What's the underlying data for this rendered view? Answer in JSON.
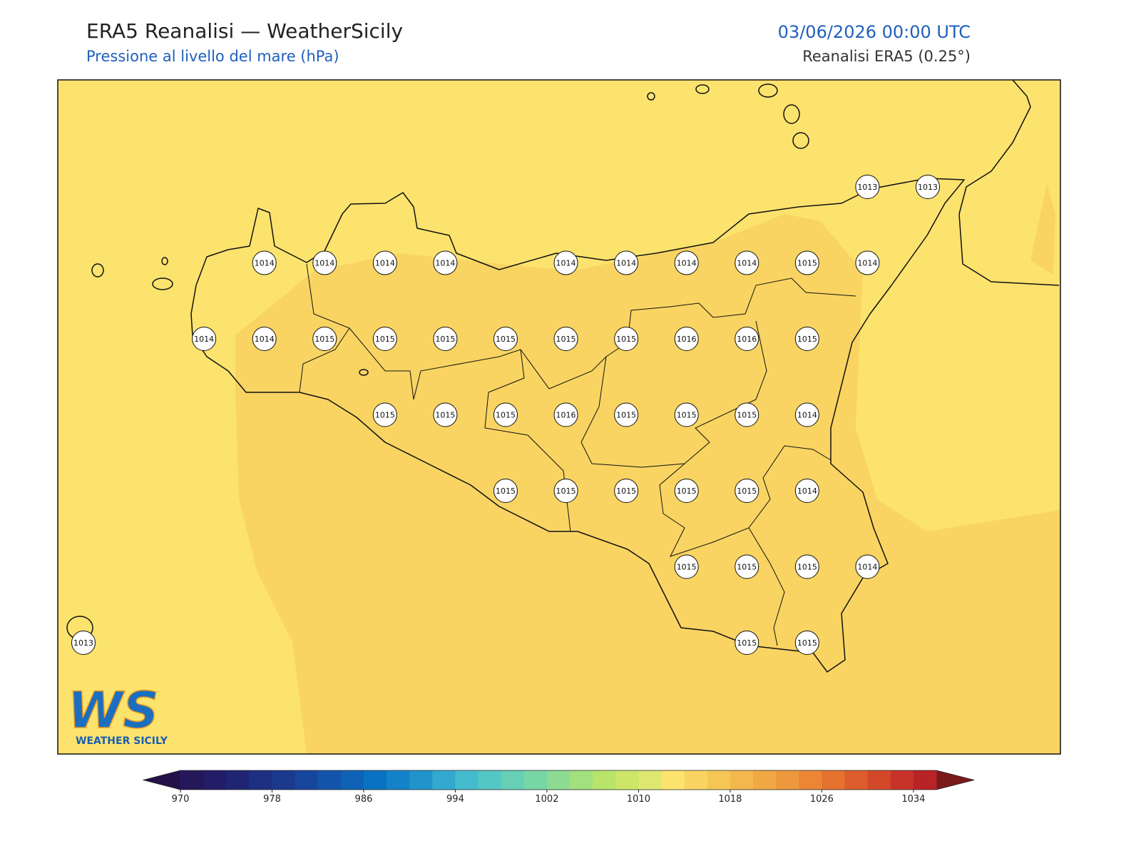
{
  "header": {
    "title": "ERA5 Reanalisi — WeatherSicily",
    "subtitle": "Pressione al livello del mare (hPa)",
    "datetime": "03/06/2026 00:00 UTC",
    "source": "Reanalisi ERA5 (0.25°)"
  },
  "pressure_grid": [
    [
      null,
      null,
      null,
      null,
      null,
      null,
      null,
      null,
      null,
      null,
      null,
      null,
      null,
      1013,
      1013
    ],
    [
      null,
      null,
      null,
      1014,
      1014,
      1014,
      1014,
      null,
      1014,
      1014,
      1014,
      1014,
      1015,
      1014,
      null
    ],
    [
      null,
      null,
      1014,
      1014,
      1015,
      1015,
      1015,
      1015,
      1015,
      1015,
      1016,
      1016,
      1015,
      null,
      null
    ],
    [
      null,
      null,
      null,
      null,
      null,
      1015,
      1015,
      1015,
      1016,
      1015,
      1015,
      1015,
      1014,
      null,
      null
    ],
    [
      null,
      null,
      null,
      null,
      null,
      null,
      null,
      1015,
      1015,
      1015,
      1015,
      1015,
      1014,
      null,
      null
    ],
    [
      null,
      null,
      null,
      null,
      null,
      null,
      null,
      null,
      null,
      null,
      1015,
      1015,
      1015,
      1014,
      null
    ],
    [
      1013,
      null,
      null,
      null,
      null,
      null,
      null,
      null,
      null,
      null,
      null,
      1015,
      1015,
      null,
      null
    ]
  ],
  "colorbar": {
    "levels": [
      970,
      972,
      974,
      976,
      978,
      980,
      982,
      984,
      986,
      988,
      990,
      992,
      994,
      996,
      998,
      1000,
      1002,
      1004,
      1006,
      1008,
      1010,
      1012,
      1014,
      1016,
      1018,
      1020,
      1022,
      1024,
      1026,
      1028,
      1030,
      1032,
      1034,
      1036
    ],
    "colors": [
      "#25185a",
      "#221d66",
      "#1f2572",
      "#1d2f80",
      "#1b3a8e",
      "#17479c",
      "#1355aa",
      "#0f63b6",
      "#0a72c2",
      "#1482c8",
      "#2294cc",
      "#34a9d0",
      "#45bccd",
      "#55c7c3",
      "#66cfb6",
      "#78d6a6",
      "#8ddb93",
      "#a2e07e",
      "#b9e46c",
      "#cde668",
      "#dee770",
      "#fce36e",
      "#f9d462",
      "#f6c655",
      "#f3b84d",
      "#f1a845",
      "#ee983d",
      "#ea8636",
      "#e5722f",
      "#de5d2c",
      "#d4482a",
      "#c73229",
      "#b82327"
    ],
    "under_color": "#241148",
    "over_color": "#7a1a1a",
    "ticks": [
      970,
      978,
      986,
      994,
      1002,
      1010,
      1018,
      1026,
      1034
    ]
  },
  "logo": {
    "mark": "WS",
    "text": "WEATHER SICILY"
  }
}
